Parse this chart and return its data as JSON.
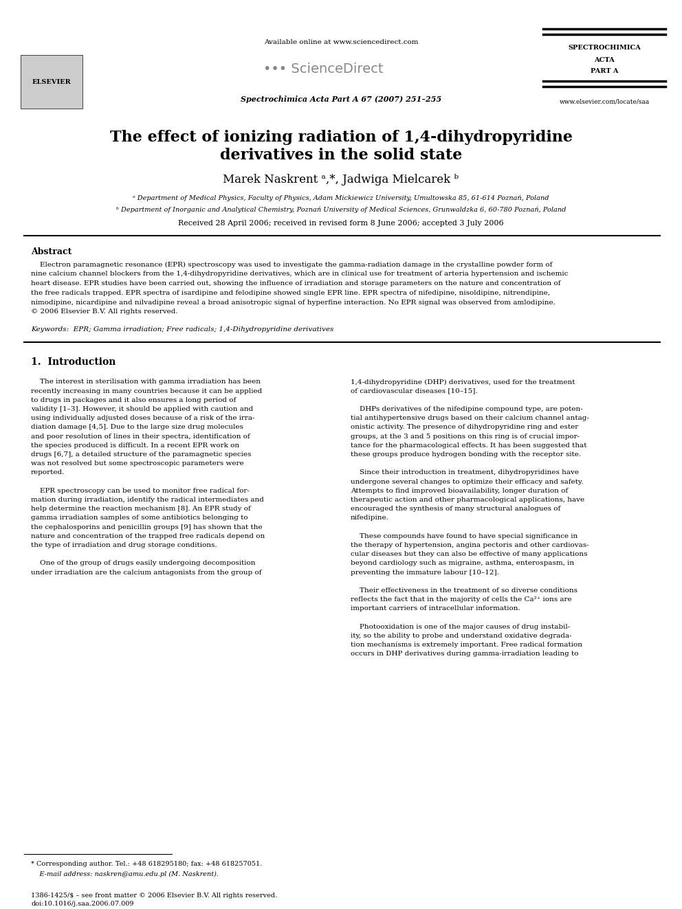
{
  "bg_color": "#ffffff",
  "title_line1": "The effect of ionizing radiation of 1,4-dihydropyridine",
  "title_line2": "derivatives in the solid state",
  "authors": "Marek Naskrent ᵃ,*, Jadwiga Mielcarek ᵇ",
  "affil_a": "ᵃ Department of Medical Physics, Faculty of Physics, Adam Mickiewicz University, Umultowska 85, 61-614 Poznań, Poland",
  "affil_b": "ᵇ Department of Inorganic and Analytical Chemistry, Poznań University of Medical Sciences, Grunwaldzka 6, 60-780 Poznań, Poland",
  "received": "Received 28 April 2006; received in revised form 8 June 2006; accepted 3 July 2006",
  "header_available": "Available online at www.sciencedirect.com",
  "header_journal": "Spectrochimica Acta Part A 67 (2007) 251–255",
  "header_spectro1": "SPECTROCHIMICA",
  "header_spectro2": "ACTA",
  "header_spectro3": "PART A",
  "header_www": "www.elsevier.com/locate/saa",
  "abstract_title": "Abstract",
  "keywords_text": "Keywords:  EPR; Gamma irradiation; Free radicals; 1,4-Dihydropyridine derivatives",
  "section1_title": "1.  Introduction",
  "footnote_corr": "* Corresponding author. Tel.: +48 618295180; fax: +48 618257051.",
  "footnote_email": "    E-mail address: naskren@amu.edu.pl (M. Naskrent).",
  "footnote_issn": "1386-1425/$ – see front matter © 2006 Elsevier B.V. All rights reserved.",
  "footnote_doi": "doi:10.1016/j.saa.2006.07.009"
}
